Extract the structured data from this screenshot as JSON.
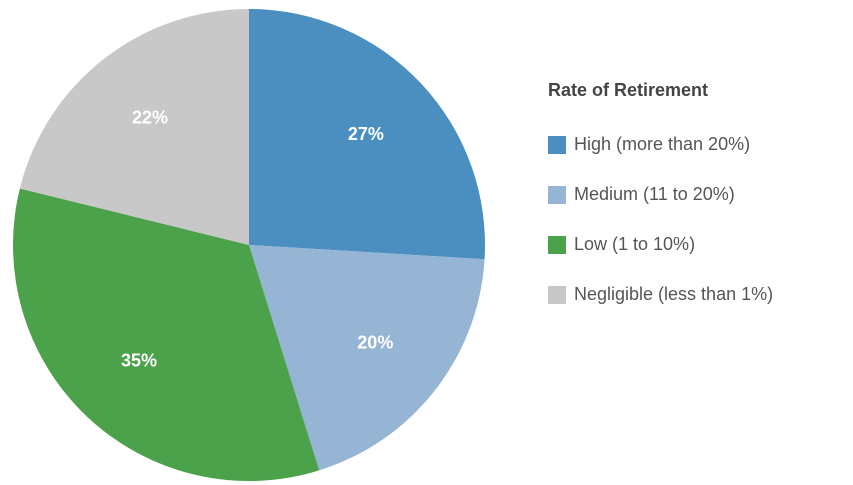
{
  "chart_data": {
    "type": "pie",
    "legend_title": "Rate of Retirement",
    "categories": [
      "High (more than 20%)",
      "Medium (11 to 20%)",
      "Low (1 to 10%)",
      "Negligible (less than 1%)"
    ],
    "values": [
      27,
      20,
      35,
      22
    ],
    "value_labels": [
      "27%",
      "20%",
      "35%",
      "22%"
    ],
    "colors": [
      "#4a8fc0",
      "#96b4d4",
      "#4ba24a",
      "#c8c8c8"
    ],
    "legend": "right"
  }
}
